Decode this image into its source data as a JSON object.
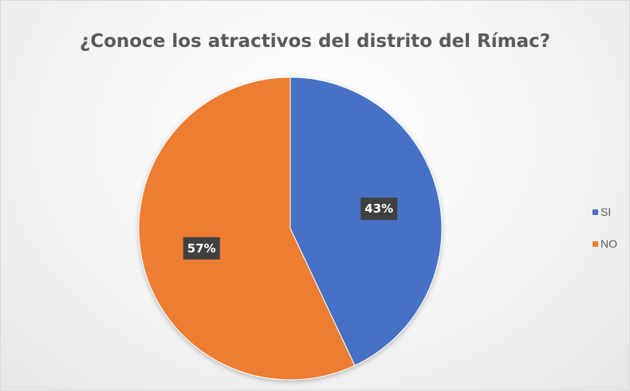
{
  "chart_data": {
    "type": "pie",
    "title": "¿Conoce los atractivos del distrito del Rímac?",
    "categories": [
      "SI",
      "NO"
    ],
    "values": [
      43,
      57
    ],
    "data_labels": [
      "43%",
      "57%"
    ],
    "colors": [
      "#4472C4",
      "#ED7D31"
    ],
    "legend_position": "right",
    "start_angle": "12 o'clock, clockwise"
  }
}
